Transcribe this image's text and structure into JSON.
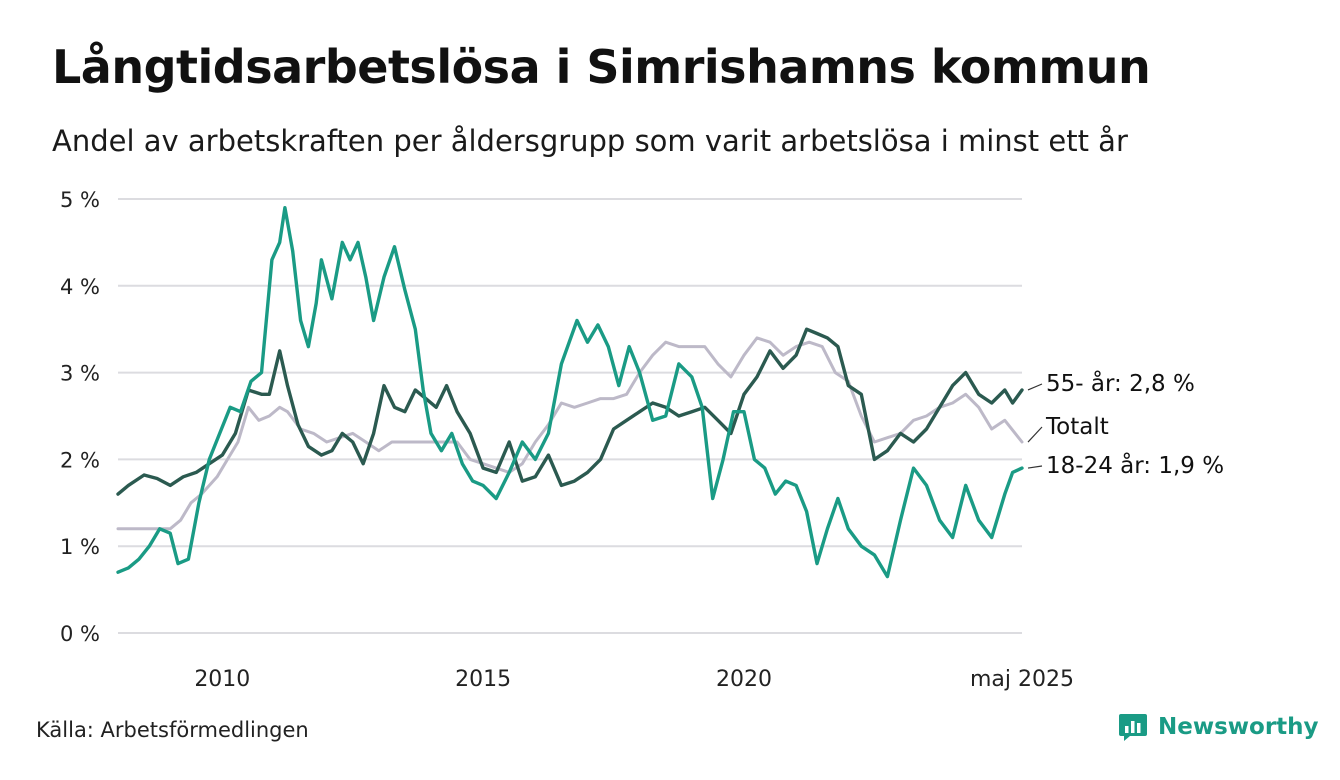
{
  "header": {
    "title": "Långtidsarbetslösa i Simrishamns kommun",
    "subtitle": "Andel av arbetskraften per åldersgrupp som varit arbetslösa i minst ett år"
  },
  "footer": {
    "source": "Källa: Arbetsförmedlingen",
    "brand": "Newsworthy"
  },
  "colors": {
    "series_55": "#2b5a50",
    "series_total": "#bdb9c8",
    "series_18_24": "#1a9b85",
    "grid": "#dcdce0",
    "brand": "#1a9b85"
  },
  "chart_data": {
    "type": "line",
    "x_unit": "year",
    "xlim": [
      2008.0,
      2025.33
    ],
    "ylim": [
      0,
      5
    ],
    "y_ticks": [
      0,
      1,
      2,
      3,
      4,
      5
    ],
    "y_tick_labels": [
      "0 %",
      "1 %",
      "2 %",
      "3 %",
      "4 %",
      "5 %"
    ],
    "x_ticks": [
      2010,
      2015,
      2020,
      2025.33
    ],
    "x_tick_labels": [
      "2010",
      "2015",
      "2020",
      "maj 2025"
    ],
    "grid": true,
    "legend": "end-labels",
    "series": [
      {
        "name": "Totalt",
        "end_label": "Totalt",
        "color_key": "series_total",
        "points": [
          [
            2008.0,
            1.2
          ],
          [
            2008.5,
            1.2
          ],
          [
            2008.75,
            1.2
          ],
          [
            2009.0,
            1.2
          ],
          [
            2009.2,
            1.3
          ],
          [
            2009.4,
            1.5
          ],
          [
            2009.6,
            1.6
          ],
          [
            2009.9,
            1.8
          ],
          [
            2010.1,
            2.0
          ],
          [
            2010.3,
            2.2
          ],
          [
            2010.5,
            2.6
          ],
          [
            2010.7,
            2.45
          ],
          [
            2010.9,
            2.5
          ],
          [
            2011.1,
            2.6
          ],
          [
            2011.25,
            2.55
          ],
          [
            2011.5,
            2.35
          ],
          [
            2011.75,
            2.3
          ],
          [
            2012.0,
            2.2
          ],
          [
            2012.25,
            2.25
          ],
          [
            2012.5,
            2.3
          ],
          [
            2012.75,
            2.2
          ],
          [
            2013.0,
            2.1
          ],
          [
            2013.25,
            2.2
          ],
          [
            2013.5,
            2.2
          ],
          [
            2013.75,
            2.2
          ],
          [
            2014.0,
            2.2
          ],
          [
            2014.25,
            2.2
          ],
          [
            2014.5,
            2.2
          ],
          [
            2014.75,
            2.0
          ],
          [
            2015.0,
            1.95
          ],
          [
            2015.25,
            1.9
          ],
          [
            2015.5,
            1.85
          ],
          [
            2015.75,
            1.95
          ],
          [
            2016.0,
            2.2
          ],
          [
            2016.25,
            2.4
          ],
          [
            2016.5,
            2.65
          ],
          [
            2016.75,
            2.6
          ],
          [
            2017.0,
            2.65
          ],
          [
            2017.25,
            2.7
          ],
          [
            2017.5,
            2.7
          ],
          [
            2017.75,
            2.75
          ],
          [
            2018.0,
            3.0
          ],
          [
            2018.25,
            3.2
          ],
          [
            2018.5,
            3.35
          ],
          [
            2018.75,
            3.3
          ],
          [
            2019.0,
            3.3
          ],
          [
            2019.25,
            3.3
          ],
          [
            2019.5,
            3.1
          ],
          [
            2019.75,
            2.95
          ],
          [
            2020.0,
            3.2
          ],
          [
            2020.25,
            3.4
          ],
          [
            2020.5,
            3.35
          ],
          [
            2020.75,
            3.2
          ],
          [
            2021.0,
            3.3
          ],
          [
            2021.25,
            3.35
          ],
          [
            2021.5,
            3.3
          ],
          [
            2021.75,
            3.0
          ],
          [
            2022.0,
            2.9
          ],
          [
            2022.25,
            2.5
          ],
          [
            2022.5,
            2.2
          ],
          [
            2022.75,
            2.25
          ],
          [
            2023.0,
            2.3
          ],
          [
            2023.25,
            2.45
          ],
          [
            2023.5,
            2.5
          ],
          [
            2023.75,
            2.6
          ],
          [
            2024.0,
            2.65
          ],
          [
            2024.25,
            2.75
          ],
          [
            2024.5,
            2.6
          ],
          [
            2024.75,
            2.35
          ],
          [
            2025.0,
            2.45
          ],
          [
            2025.33,
            2.2
          ]
        ]
      },
      {
        "name": "55- år",
        "end_label": "55- år: 2,8 %",
        "color_key": "series_55",
        "points": [
          [
            2008.0,
            1.6
          ],
          [
            2008.2,
            1.7
          ],
          [
            2008.5,
            1.82
          ],
          [
            2008.75,
            1.78
          ],
          [
            2009.0,
            1.7
          ],
          [
            2009.25,
            1.8
          ],
          [
            2009.5,
            1.85
          ],
          [
            2009.75,
            1.95
          ],
          [
            2010.0,
            2.05
          ],
          [
            2010.25,
            2.3
          ],
          [
            2010.5,
            2.8
          ],
          [
            2010.75,
            2.75
          ],
          [
            2010.9,
            2.75
          ],
          [
            2011.0,
            3.0
          ],
          [
            2011.1,
            3.25
          ],
          [
            2011.25,
            2.85
          ],
          [
            2011.45,
            2.4
          ],
          [
            2011.65,
            2.15
          ],
          [
            2011.9,
            2.05
          ],
          [
            2012.1,
            2.1
          ],
          [
            2012.3,
            2.3
          ],
          [
            2012.5,
            2.2
          ],
          [
            2012.7,
            1.95
          ],
          [
            2012.9,
            2.3
          ],
          [
            2013.1,
            2.85
          ],
          [
            2013.3,
            2.6
          ],
          [
            2013.5,
            2.55
          ],
          [
            2013.7,
            2.8
          ],
          [
            2013.9,
            2.7
          ],
          [
            2014.1,
            2.6
          ],
          [
            2014.3,
            2.85
          ],
          [
            2014.5,
            2.55
          ],
          [
            2014.75,
            2.3
          ],
          [
            2015.0,
            1.9
          ],
          [
            2015.25,
            1.85
          ],
          [
            2015.5,
            2.2
          ],
          [
            2015.75,
            1.75
          ],
          [
            2016.0,
            1.8
          ],
          [
            2016.25,
            2.05
          ],
          [
            2016.5,
            1.7
          ],
          [
            2016.75,
            1.75
          ],
          [
            2017.0,
            1.85
          ],
          [
            2017.25,
            2.0
          ],
          [
            2017.5,
            2.35
          ],
          [
            2017.75,
            2.45
          ],
          [
            2018.0,
            2.55
          ],
          [
            2018.25,
            2.65
          ],
          [
            2018.5,
            2.6
          ],
          [
            2018.75,
            2.5
          ],
          [
            2019.0,
            2.55
          ],
          [
            2019.25,
            2.6
          ],
          [
            2019.5,
            2.45
          ],
          [
            2019.75,
            2.3
          ],
          [
            2020.0,
            2.75
          ],
          [
            2020.25,
            2.95
          ],
          [
            2020.5,
            3.25
          ],
          [
            2020.75,
            3.05
          ],
          [
            2021.0,
            3.2
          ],
          [
            2021.2,
            3.5
          ],
          [
            2021.4,
            3.45
          ],
          [
            2021.6,
            3.4
          ],
          [
            2021.8,
            3.3
          ],
          [
            2022.0,
            2.85
          ],
          [
            2022.25,
            2.75
          ],
          [
            2022.5,
            2.0
          ],
          [
            2022.75,
            2.1
          ],
          [
            2023.0,
            2.3
          ],
          [
            2023.25,
            2.2
          ],
          [
            2023.5,
            2.35
          ],
          [
            2023.75,
            2.6
          ],
          [
            2024.0,
            2.85
          ],
          [
            2024.25,
            3.0
          ],
          [
            2024.5,
            2.75
          ],
          [
            2024.75,
            2.65
          ],
          [
            2025.0,
            2.8
          ],
          [
            2025.15,
            2.65
          ],
          [
            2025.33,
            2.8
          ]
        ]
      },
      {
        "name": "18-24 år",
        "end_label": "18-24 år: 1,9 %",
        "color_key": "series_18_24",
        "points": [
          [
            2008.0,
            0.7
          ],
          [
            2008.2,
            0.75
          ],
          [
            2008.4,
            0.85
          ],
          [
            2008.6,
            1.0
          ],
          [
            2008.8,
            1.2
          ],
          [
            2009.0,
            1.15
          ],
          [
            2009.15,
            0.8
          ],
          [
            2009.35,
            0.85
          ],
          [
            2009.55,
            1.5
          ],
          [
            2009.75,
            2.0
          ],
          [
            2009.95,
            2.3
          ],
          [
            2010.15,
            2.6
          ],
          [
            2010.35,
            2.55
          ],
          [
            2010.55,
            2.9
          ],
          [
            2010.75,
            3.0
          ],
          [
            2010.95,
            4.3
          ],
          [
            2011.1,
            4.5
          ],
          [
            2011.2,
            4.9
          ],
          [
            2011.35,
            4.4
          ],
          [
            2011.5,
            3.6
          ],
          [
            2011.65,
            3.3
          ],
          [
            2011.8,
            3.8
          ],
          [
            2011.9,
            4.3
          ],
          [
            2012.1,
            3.85
          ],
          [
            2012.3,
            4.5
          ],
          [
            2012.45,
            4.3
          ],
          [
            2012.6,
            4.5
          ],
          [
            2012.75,
            4.1
          ],
          [
            2012.9,
            3.6
          ],
          [
            2013.1,
            4.1
          ],
          [
            2013.3,
            4.45
          ],
          [
            2013.5,
            3.95
          ],
          [
            2013.7,
            3.5
          ],
          [
            2013.85,
            2.8
          ],
          [
            2014.0,
            2.3
          ],
          [
            2014.2,
            2.1
          ],
          [
            2014.4,
            2.3
          ],
          [
            2014.6,
            1.95
          ],
          [
            2014.8,
            1.75
          ],
          [
            2015.0,
            1.7
          ],
          [
            2015.25,
            1.55
          ],
          [
            2015.5,
            1.85
          ],
          [
            2015.75,
            2.2
          ],
          [
            2016.0,
            2.0
          ],
          [
            2016.25,
            2.3
          ],
          [
            2016.5,
            3.1
          ],
          [
            2016.65,
            3.35
          ],
          [
            2016.8,
            3.6
          ],
          [
            2017.0,
            3.35
          ],
          [
            2017.2,
            3.55
          ],
          [
            2017.4,
            3.3
          ],
          [
            2017.6,
            2.85
          ],
          [
            2017.8,
            3.3
          ],
          [
            2018.0,
            3.0
          ],
          [
            2018.25,
            2.45
          ],
          [
            2018.5,
            2.5
          ],
          [
            2018.75,
            3.1
          ],
          [
            2019.0,
            2.95
          ],
          [
            2019.2,
            2.6
          ],
          [
            2019.4,
            1.55
          ],
          [
            2019.6,
            2.0
          ],
          [
            2019.8,
            2.55
          ],
          [
            2020.0,
            2.55
          ],
          [
            2020.2,
            2.0
          ],
          [
            2020.4,
            1.9
          ],
          [
            2020.6,
            1.6
          ],
          [
            2020.8,
            1.75
          ],
          [
            2021.0,
            1.7
          ],
          [
            2021.2,
            1.4
          ],
          [
            2021.4,
            0.8
          ],
          [
            2021.6,
            1.2
          ],
          [
            2021.8,
            1.55
          ],
          [
            2022.0,
            1.2
          ],
          [
            2022.25,
            1.0
          ],
          [
            2022.5,
            0.9
          ],
          [
            2022.75,
            0.65
          ],
          [
            2023.0,
            1.3
          ],
          [
            2023.25,
            1.9
          ],
          [
            2023.5,
            1.7
          ],
          [
            2023.75,
            1.3
          ],
          [
            2024.0,
            1.1
          ],
          [
            2024.25,
            1.7
          ],
          [
            2024.5,
            1.3
          ],
          [
            2024.75,
            1.1
          ],
          [
            2025.0,
            1.6
          ],
          [
            2025.15,
            1.85
          ],
          [
            2025.33,
            1.9
          ]
        ]
      }
    ]
  }
}
